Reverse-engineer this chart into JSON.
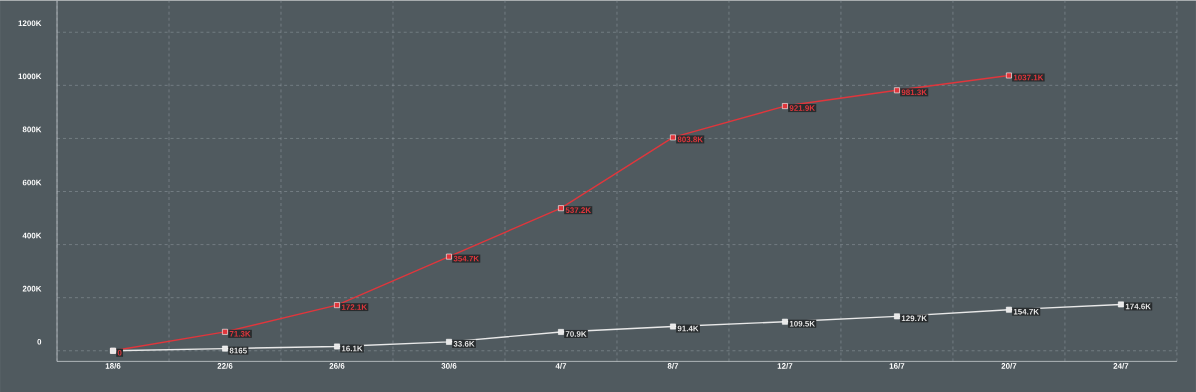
{
  "chart_data": {
    "type": "line",
    "categories": [
      "18/6",
      "22/6",
      "26/6",
      "30/6",
      "4/7",
      "8/7",
      "12/7",
      "16/7",
      "20/7",
      "24/7"
    ],
    "series": [
      {
        "color": "#e8e8e8",
        "values": [
          0,
          8165,
          16100,
          33600,
          70900,
          91400,
          109500,
          129700,
          154700,
          174600
        ],
        "value_labels": [
          null,
          "8165",
          "16.1K",
          "33.6K",
          "70.9K",
          "91.4K",
          "109.5K",
          "129.7K",
          "154.7K",
          "174.6K"
        ]
      },
      {
        "color": "#e0363c",
        "values": [
          0,
          71300,
          172100,
          354700,
          537200,
          803800,
          921900,
          981300,
          1037100,
          null
        ],
        "value_labels": [
          "0",
          "71.3K",
          "172.1K",
          "354.7K",
          "537.2K",
          "803.8K",
          "921.9K",
          "981.3K",
          "1037.1K",
          null
        ]
      }
    ],
    "ylim": [
      -40000,
      1320000
    ],
    "yticks": [
      {
        "value": 0,
        "label": "0"
      },
      {
        "value": 200000,
        "label": "200K"
      },
      {
        "value": 400000,
        "label": "400K"
      },
      {
        "value": 600000,
        "label": "600K"
      },
      {
        "value": 800000,
        "label": "800K"
      },
      {
        "value": 1000000,
        "label": "1000K"
      },
      {
        "value": 1200000,
        "label": "1200K"
      }
    ],
    "grid": true,
    "marker": "square",
    "line_style": "solid"
  }
}
